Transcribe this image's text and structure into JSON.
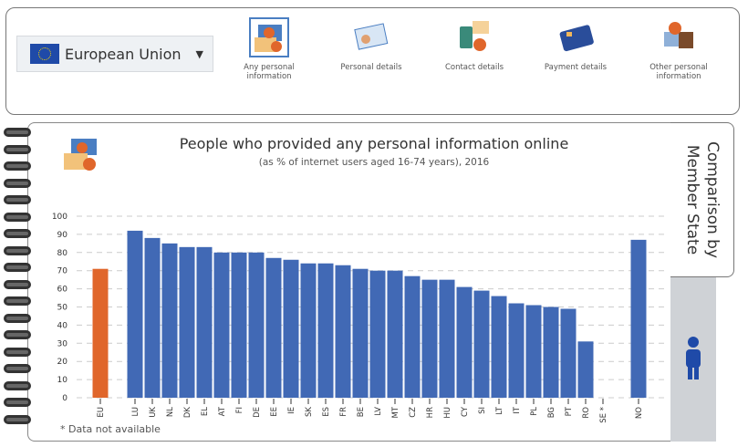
{
  "selector": {
    "value": "European Union"
  },
  "categories": [
    {
      "label": "Any personal information",
      "active": true
    },
    {
      "label": "Personal details",
      "active": false
    },
    {
      "label": "Contact details",
      "active": false
    },
    {
      "label": "Payment details",
      "active": false
    },
    {
      "label": "Other personal information",
      "active": false
    }
  ],
  "side_tab": {
    "label_line1": "Comparison by",
    "label_line2": "Member State"
  },
  "colors": {
    "eu_bar": "#e0662b",
    "country_bar": "#4169b5"
  },
  "chart_data": {
    "type": "bar",
    "title": "People who provided any personal information online",
    "subtitle": "(as % of internet users aged 16-74 years), 2016",
    "categories": [
      "EU",
      "LU",
      "UK",
      "NL",
      "DK",
      "EL",
      "AT",
      "FI",
      "DE",
      "EE",
      "IE",
      "SK",
      "ES",
      "FR",
      "BE",
      "LV",
      "MT",
      "CZ",
      "HR",
      "HU",
      "CY",
      "SI",
      "LT",
      "IT",
      "PL",
      "BG",
      "PT",
      "RO",
      "SE *",
      "NO"
    ],
    "values": [
      71,
      92,
      88,
      85,
      83,
      83,
      80,
      80,
      80,
      77,
      76,
      74,
      74,
      73,
      71,
      70,
      70,
      67,
      65,
      65,
      61,
      59,
      56,
      52,
      51,
      50,
      49,
      31,
      null,
      87
    ],
    "ylim": [
      0,
      100
    ],
    "yticks": [
      0,
      10,
      20,
      30,
      40,
      50,
      60,
      70,
      80,
      90,
      100
    ],
    "grid": true,
    "note": "* Data not available"
  }
}
